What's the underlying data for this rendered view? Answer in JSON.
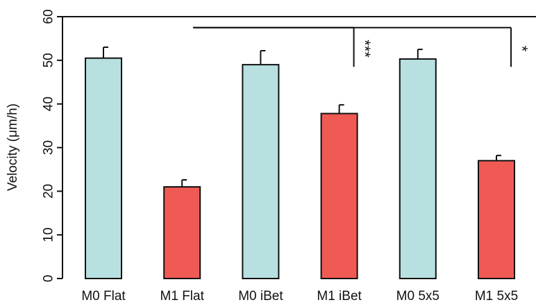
{
  "chart_data": {
    "type": "bar",
    "title": "",
    "xlabel": "",
    "ylabel": "Velocity (μm/h)",
    "ylim": [
      0,
      60
    ],
    "yticks": [
      0,
      10,
      20,
      30,
      40,
      50,
      60
    ],
    "grid": false,
    "categories": [
      "M0 Flat",
      "M1 Flat",
      "M0 iBet",
      "M1 iBet",
      "M0 5x5",
      "M1 5x5"
    ],
    "values": [
      50.5,
      21.0,
      49.0,
      37.8,
      50.3,
      27.0
    ],
    "errors": [
      2.5,
      1.6,
      3.2,
      2.0,
      2.2,
      1.2
    ],
    "bar_colors": [
      "#b8e0e0",
      "#f05a55",
      "#b8e0e0",
      "#f05a55",
      "#b8e0e0",
      "#f05a55"
    ],
    "significance": [
      {
        "label": "***",
        "from_category": "M1 Flat",
        "to_category": "M1 iBet",
        "bracket_level": 57.5,
        "drop_to": 48.5
      },
      {
        "label": "*",
        "from_category": "M1 Flat",
        "to_category": "M1 5x5",
        "bracket_level": 57.5,
        "drop_to": 48.5
      }
    ]
  }
}
